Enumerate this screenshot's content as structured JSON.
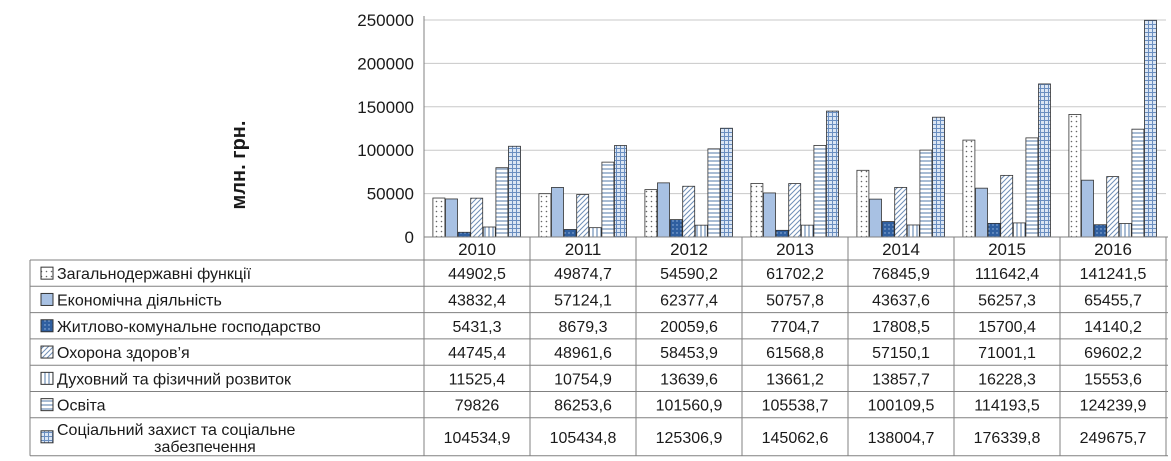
{
  "chart_data": {
    "type": "bar",
    "ylabel": "млн. грн.",
    "ylim": [
      0,
      250000
    ],
    "yticks": [
      "0",
      "50000",
      "100000",
      "150000",
      "200000",
      "250000"
    ],
    "categories": [
      "2010",
      "2011",
      "2012",
      "2013",
      "2014",
      "2015",
      "2016"
    ],
    "grid": true,
    "legend_placement": "data-table-left",
    "series": [
      {
        "name": "Загальнодержавні функції",
        "pattern": "dots",
        "values": [
          44902.5,
          49874.7,
          54590.2,
          61702.2,
          76845.9,
          111642.4,
          141241.5
        ],
        "labels": [
          "44902,5",
          "49874,7",
          "54590,2",
          "61702,2",
          "76845,9",
          "111642,4",
          "141241,5"
        ]
      },
      {
        "name": "Економічна діяльність",
        "pattern": "light-blue-solid",
        "values": [
          43832.4,
          57124.1,
          62377.4,
          50757.8,
          43637.6,
          56257.3,
          65455.7
        ],
        "labels": [
          "43832,4",
          "57124,1",
          "62377,4",
          "50757,8",
          "43637,6",
          "56257,3",
          "65455,7"
        ]
      },
      {
        "name": "Житлово-комунальне господарство",
        "pattern": "dark-blue-dotted",
        "values": [
          5431.3,
          8679.3,
          20059.6,
          7704.7,
          17808.5,
          15700.4,
          14140.2
        ],
        "labels": [
          "5431,3",
          "8679,3",
          "20059,6",
          "7704,7",
          "17808,5",
          "15700,4",
          "14140,2"
        ]
      },
      {
        "name": "Охорона здоров’я",
        "pattern": "diagonal-hatch",
        "values": [
          44745.4,
          48961.6,
          58453.9,
          61568.8,
          57150.1,
          71001.1,
          69602.2
        ],
        "labels": [
          "44745,4",
          "48961,6",
          "58453,9",
          "61568,8",
          "57150,1",
          "71001,1",
          "69602,2"
        ]
      },
      {
        "name": "Духовний та фізичний розвиток",
        "pattern": "vertical-lines",
        "values": [
          11525.4,
          10754.9,
          13639.6,
          13661.2,
          13857.7,
          16228.3,
          15553.6
        ],
        "labels": [
          "11525,4",
          "10754,9",
          "13639,6",
          "13661,2",
          "13857,7",
          "16228,3",
          "15553,6"
        ]
      },
      {
        "name": "Освіта",
        "pattern": "horizontal-lines",
        "values": [
          79826,
          86253.6,
          101560.9,
          105538.7,
          100109.5,
          114193.5,
          124239.9
        ],
        "labels": [
          "79826",
          "86253,6",
          "101560,9",
          "105538,7",
          "100109,5",
          "114193,5",
          "124239,9"
        ]
      },
      {
        "name": "Соціальний захист та соціальне забезпечення",
        "pattern": "grid",
        "values": [
          104534.9,
          105434.8,
          125306.9,
          145062.6,
          138004.7,
          176339.8,
          249675.7
        ],
        "labels": [
          "104534,9",
          "105434,8",
          "125306,9",
          "145062,6",
          "138004,7",
          "176339,8",
          "249675,7"
        ]
      }
    ]
  },
  "table_legend": [
    {
      "lines": [
        "Загальнодержавні функції"
      ]
    },
    {
      "lines": [
        "Економічна діяльність"
      ]
    },
    {
      "lines": [
        "Житлово-комунальне господарство"
      ]
    },
    {
      "lines": [
        "Охорона здоров’я"
      ]
    },
    {
      "lines": [
        "Духовний та фізичний розвиток"
      ]
    },
    {
      "lines": [
        "Освіта"
      ]
    },
    {
      "lines": [
        "Соціальний захист та соціальне",
        "забезпечення"
      ]
    }
  ]
}
